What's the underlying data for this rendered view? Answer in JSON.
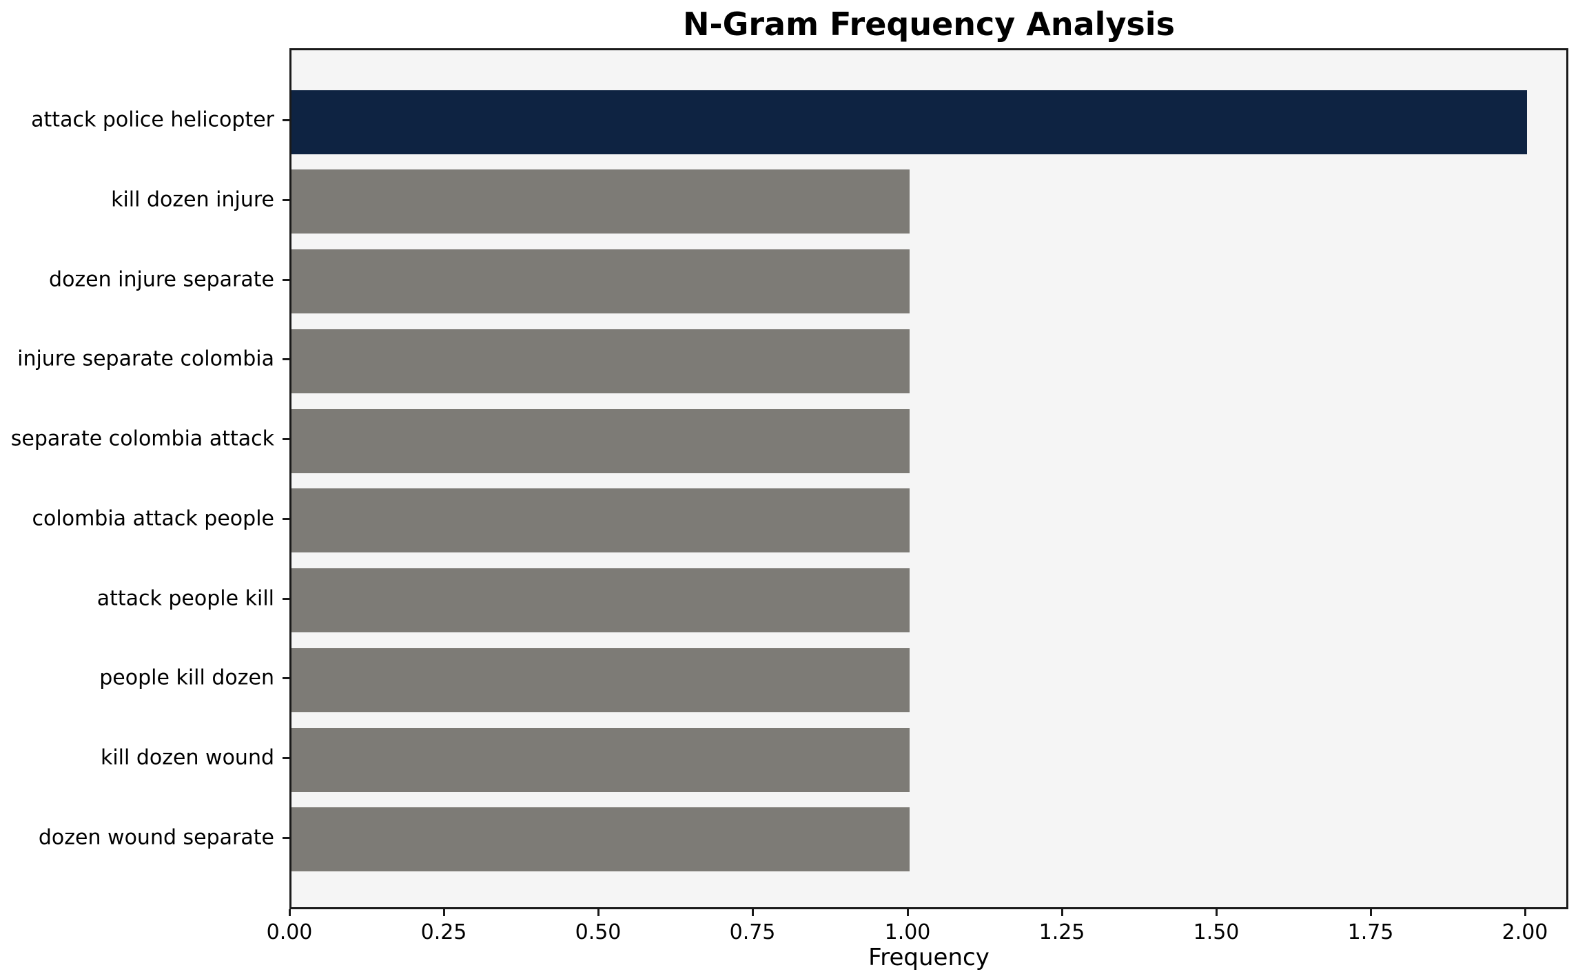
{
  "chart_data": {
    "type": "bar",
    "orientation": "horizontal",
    "title": "N-Gram Frequency Analysis",
    "xlabel": "Frequency",
    "ylabel": "",
    "categories": [
      "attack police helicopter",
      "kill dozen injure",
      "dozen injure separate",
      "injure separate colombia",
      "separate colombia attack",
      "colombia attack people",
      "attack people kill",
      "people kill dozen",
      "kill dozen wound",
      "dozen wound separate"
    ],
    "values": [
      2,
      1,
      1,
      1,
      1,
      1,
      1,
      1,
      1,
      1
    ],
    "xlim": [
      0,
      2.07
    ],
    "xticks": [
      "0.00",
      "0.25",
      "0.50",
      "0.75",
      "1.00",
      "1.25",
      "1.50",
      "1.75",
      "2.00"
    ],
    "xtick_values": [
      0,
      0.25,
      0.5,
      0.75,
      1.0,
      1.25,
      1.5,
      1.75,
      2.0
    ],
    "grid": false,
    "legend": null,
    "colors": {
      "highlight_bar": "#0e2342",
      "default_bar": "#7d7b76",
      "plot_background": "#f5f5f5",
      "page_background": "#ffffff",
      "spine": "#1a1a1a"
    }
  }
}
